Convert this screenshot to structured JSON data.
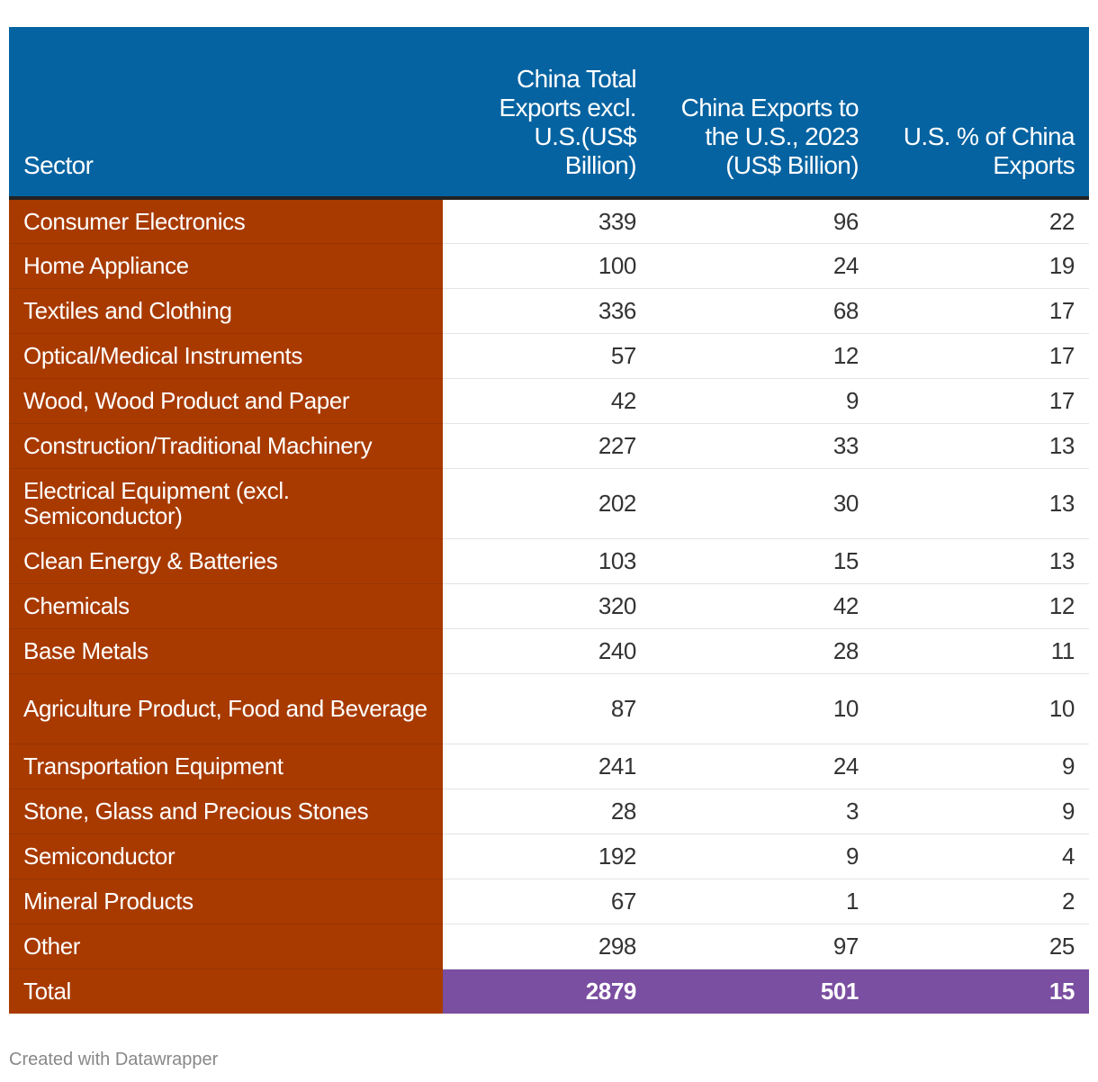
{
  "chart_data": {
    "type": "table",
    "colors": {
      "header": "#0563a1",
      "sector": "#a83a00",
      "total": "#7a4ea0"
    },
    "columns": [
      "Sector",
      "China Total Exports excl. U.S.(US$ Billion)",
      "China Exports to the U.S., 2023 (US$ Billion)",
      "U.S. % of China Exports"
    ],
    "rows": [
      {
        "sector": "Consumer Electronics",
        "total_excl_us": 339,
        "exports_to_us": 96,
        "us_pct": 22
      },
      {
        "sector": "Home Appliance",
        "total_excl_us": 100,
        "exports_to_us": 24,
        "us_pct": 19
      },
      {
        "sector": "Textiles and Clothing",
        "total_excl_us": 336,
        "exports_to_us": 68,
        "us_pct": 17
      },
      {
        "sector": "Optical/Medical Instruments",
        "total_excl_us": 57,
        "exports_to_us": 12,
        "us_pct": 17
      },
      {
        "sector": "Wood, Wood Product and Paper",
        "total_excl_us": 42,
        "exports_to_us": 9,
        "us_pct": 17
      },
      {
        "sector": "Construction/Traditional Machinery",
        "total_excl_us": 227,
        "exports_to_us": 33,
        "us_pct": 13
      },
      {
        "sector": "Electrical Equipment (excl. Semiconductor)",
        "total_excl_us": 202,
        "exports_to_us": 30,
        "us_pct": 13
      },
      {
        "sector": "Clean Energy & Batteries",
        "total_excl_us": 103,
        "exports_to_us": 15,
        "us_pct": 13
      },
      {
        "sector": "Chemicals",
        "total_excl_us": 320,
        "exports_to_us": 42,
        "us_pct": 12
      },
      {
        "sector": "Base Metals",
        "total_excl_us": 240,
        "exports_to_us": 28,
        "us_pct": 11
      },
      {
        "sector": "Agriculture Product, Food and Beverage",
        "total_excl_us": 87,
        "exports_to_us": 10,
        "us_pct": 10
      },
      {
        "sector": "Transportation Equipment",
        "total_excl_us": 241,
        "exports_to_us": 24,
        "us_pct": 9
      },
      {
        "sector": "Stone, Glass and Precious Stones",
        "total_excl_us": 28,
        "exports_to_us": 3,
        "us_pct": 9
      },
      {
        "sector": "Semiconductor",
        "total_excl_us": 192,
        "exports_to_us": 9,
        "us_pct": 4
      },
      {
        "sector": "Mineral Products",
        "total_excl_us": 67,
        "exports_to_us": 1,
        "us_pct": 2
      },
      {
        "sector": "Other",
        "total_excl_us": 298,
        "exports_to_us": 97,
        "us_pct": 25
      }
    ],
    "total": {
      "sector": "Total",
      "total_excl_us": 2879,
      "exports_to_us": 501,
      "us_pct": 15
    }
  },
  "footer": {
    "credit": "Created with Datawrapper"
  }
}
